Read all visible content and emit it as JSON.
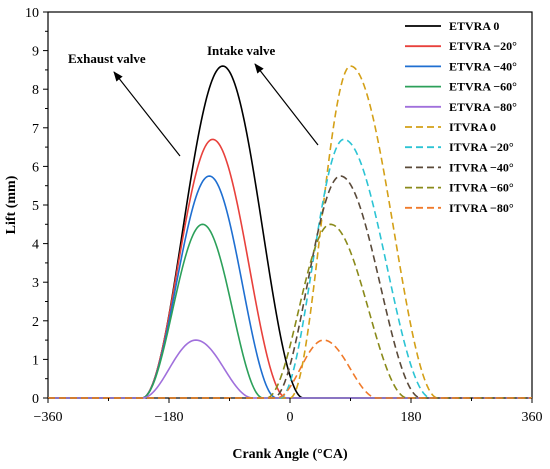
{
  "chart_data": {
    "type": "line",
    "xlabel": "Crank Angle (°CA)",
    "ylabel": "Lift (mm)",
    "xlim": [
      -360,
      360
    ],
    "ylim": [
      0,
      10
    ],
    "xticks": [
      "-360",
      "-180",
      "0",
      "180",
      "360"
    ],
    "yticks": [
      "0",
      "1",
      "2",
      "3",
      "4",
      "5",
      "6",
      "7",
      "8",
      "9",
      "10"
    ],
    "grid": false,
    "legend_position": "top-right",
    "annotations": [
      {
        "text": "Exhaust valve"
      },
      {
        "text": "Intake valve"
      }
    ],
    "series": [
      {
        "name": "ETVRA 0",
        "color": "#000000",
        "dash": "solid",
        "start": -220,
        "end": 20,
        "peak_x": -100,
        "peak": 8.6
      },
      {
        "name": "ETVRA −20°",
        "color": "#e8413c",
        "dash": "solid",
        "start": -220,
        "end": -5,
        "peak_x": -115,
        "peak": 6.7
      },
      {
        "name": "ETVRA −40°",
        "color": "#1f6fd1",
        "dash": "solid",
        "start": -220,
        "end": -20,
        "peak_x": -120,
        "peak": 5.75
      },
      {
        "name": "ETVRA −60°",
        "color": "#2ca05a",
        "dash": "solid",
        "start": -220,
        "end": -40,
        "peak_x": -130,
        "peak": 4.5
      },
      {
        "name": "ETVRA −80°",
        "color": "#a070dc",
        "dash": "solid",
        "start": -220,
        "end": -55,
        "peak_x": -140,
        "peak": 1.5
      },
      {
        "name": "ITVRA 0",
        "color": "#d4a017",
        "dash": "dashed",
        "start": 0,
        "end": 220,
        "peak_x": 90,
        "peak": 8.6
      },
      {
        "name": "ITVRA −20°",
        "color": "#2cc4d4",
        "dash": "dashed",
        "start": -15,
        "end": 210,
        "peak_x": 80,
        "peak": 6.7
      },
      {
        "name": "ITVRA −40°",
        "color": "#5a4a3a",
        "dash": "dashed",
        "start": -25,
        "end": 195,
        "peak_x": 75,
        "peak": 5.75
      },
      {
        "name": "ITVRA −60°",
        "color": "#8a8a1a",
        "dash": "dashed",
        "start": -35,
        "end": 175,
        "peak_x": 60,
        "peak": 4.5
      },
      {
        "name": "ITVRA −80°",
        "color": "#f07a2a",
        "dash": "dashed",
        "start": -20,
        "end": 130,
        "peak_x": 50,
        "peak": 1.5
      }
    ]
  }
}
